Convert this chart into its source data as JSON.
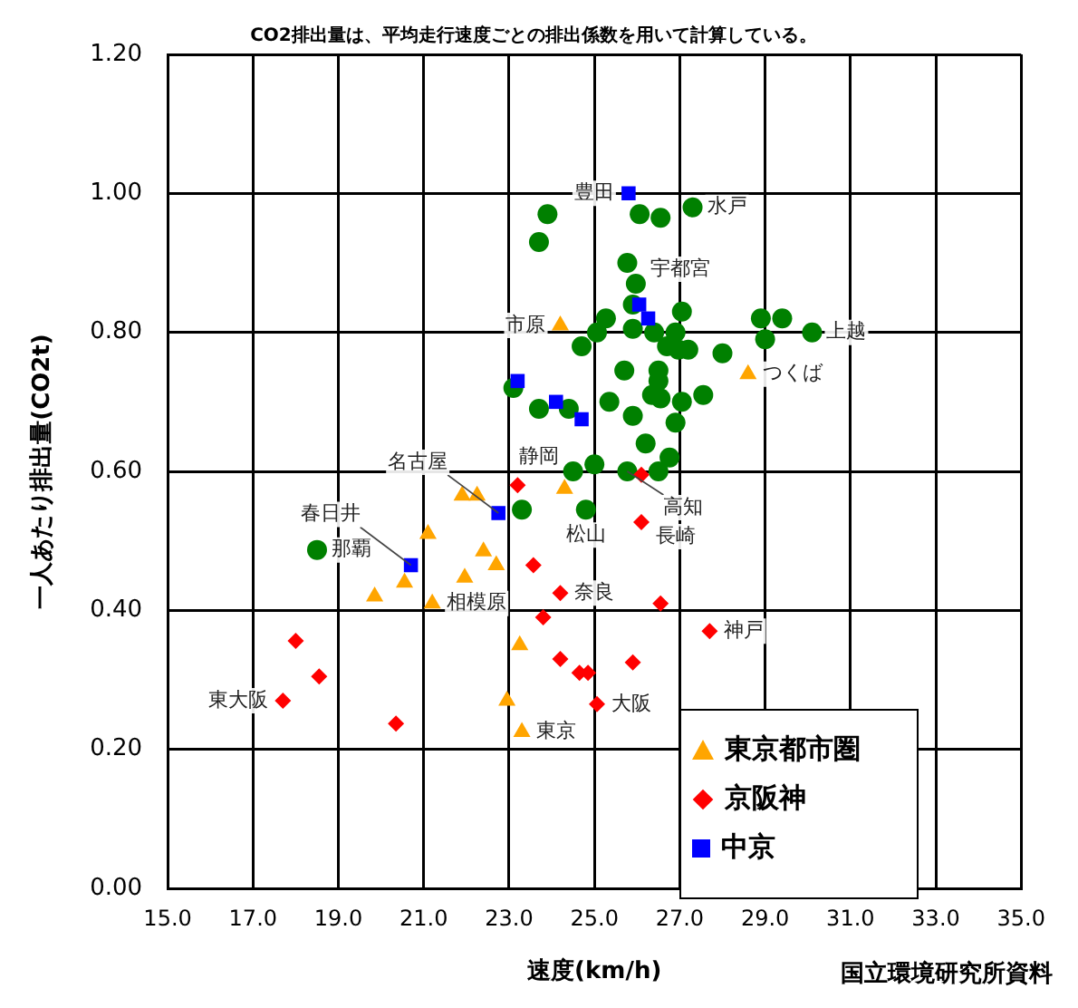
{
  "chart_data": {
    "type": "scatter",
    "subtitle": "CO2排出量は、平均走行速度ごとの排出係数を用いて計算している。",
    "xlabel": "速度(km/h)",
    "ylabel": "一人あたり排出量(CO2t)",
    "xlim": [
      15,
      35
    ],
    "xticks": [
      {
        "value": 15,
        "label": "15.0"
      },
      {
        "value": 17,
        "label": "17.0"
      },
      {
        "value": 19,
        "label": "19.0"
      },
      {
        "value": 21,
        "label": "21.0"
      },
      {
        "value": 23,
        "label": "23.0"
      },
      {
        "value": 25,
        "label": "25.0"
      },
      {
        "value": 27,
        "label": "27.0"
      },
      {
        "value": 29,
        "label": "29.0"
      },
      {
        "value": 31,
        "label": "31.0"
      },
      {
        "value": 33,
        "label": "33.0"
      },
      {
        "value": 35,
        "label": "35.0"
      }
    ],
    "ylim": [
      0,
      1.2
    ],
    "yticks": [
      {
        "value": 0,
        "label": "0.00"
      },
      {
        "value": 0.2,
        "label": "0.20"
      },
      {
        "value": 0.4,
        "label": "0.40"
      },
      {
        "value": 0.6,
        "label": "0.60"
      },
      {
        "value": 0.8,
        "label": "0.80"
      },
      {
        "value": 1.0,
        "label": "1.00"
      },
      {
        "value": 1.2,
        "label": "1.20"
      }
    ],
    "grid": true,
    "legend": "bottom right",
    "series": [
      {
        "color": "#008000",
        "marker": "circle",
        "x": [
          23.9,
          23.7,
          26.06,
          26.55,
          27.3,
          25.77,
          25.97,
          25.9,
          25.27,
          25.06,
          25.9,
          26.4,
          27.05,
          26.9,
          26.7,
          26.97,
          27.2,
          28.0,
          28.9,
          29.4,
          29.0,
          30.1,
          24.7,
          25.7,
          26.5,
          26.5,
          26.35,
          26.55,
          27.05,
          27.55,
          25.35,
          25.9,
          26.9,
          23.1,
          23.7,
          24.4,
          26.2,
          26.76,
          24.5,
          25.0,
          25.77,
          26.5,
          24.8,
          23.3,
          18.5
        ],
        "values": [
          0.97,
          0.93,
          0.97,
          0.965,
          0.98,
          0.9,
          0.87,
          0.84,
          0.82,
          0.8,
          0.805,
          0.8,
          0.83,
          0.8,
          0.78,
          0.775,
          0.775,
          0.77,
          0.82,
          0.82,
          0.79,
          0.8,
          0.78,
          0.745,
          0.745,
          0.73,
          0.71,
          0.705,
          0.7,
          0.71,
          0.7,
          0.68,
          0.67,
          0.72,
          0.69,
          0.69,
          0.64,
          0.62,
          0.6,
          0.61,
          0.6,
          0.6,
          0.545,
          0.545,
          0.487
        ]
      },
      {
        "name": "東京都市圏",
        "color": "#ffa500",
        "marker": "triangle",
        "x": [
          24.2,
          28.6,
          24.3,
          21.1,
          21.9,
          22.25,
          22.4,
          22.7,
          21.96,
          20.55,
          19.85,
          21.2,
          23.25,
          22.95,
          23.3
        ],
        "values": [
          0.81,
          0.74,
          0.575,
          0.51,
          0.565,
          0.565,
          0.485,
          0.465,
          0.447,
          0.44,
          0.42,
          0.41,
          0.35,
          0.27,
          0.225
        ]
      },
      {
        "name": "京阪神",
        "color": "#ff0000",
        "marker": "diamond",
        "x": [
          23.2,
          26.1,
          26.1,
          23.57,
          24.2,
          23.8,
          26.55,
          27.7,
          24.2,
          24.65,
          24.85,
          25.9,
          25.06,
          18.0,
          18.55,
          17.7,
          20.35
        ],
        "values": [
          0.58,
          0.595,
          0.527,
          0.465,
          0.425,
          0.39,
          0.41,
          0.37,
          0.33,
          0.31,
          0.31,
          0.325,
          0.265,
          0.356,
          0.305,
          0.27,
          0.237
        ]
      },
      {
        "name": "中京",
        "color": "#0000ff",
        "marker": "square",
        "x": [
          25.8,
          26.05,
          26.26,
          23.2,
          24.1,
          24.7,
          20.7,
          22.75
        ],
        "values": [
          1.0,
          0.84,
          0.82,
          0.73,
          0.7,
          0.675,
          0.465,
          0.54
        ]
      }
    ],
    "annotations": [
      {
        "text": "豊田",
        "x": 25.8,
        "y": 1.0
      },
      {
        "text": "水戸",
        "x": 27.3,
        "y": 0.98
      },
      {
        "text": "宇都宮",
        "x": 25.97,
        "y": 0.87
      },
      {
        "text": "市原",
        "x": 24.2,
        "y": 0.81
      },
      {
        "text": "上越",
        "x": 30.1,
        "y": 0.8
      },
      {
        "text": "つくば",
        "x": 28.6,
        "y": 0.74
      },
      {
        "text": "静岡",
        "x": 24.5,
        "y": 0.6
      },
      {
        "text": "高知",
        "x": 25.77,
        "y": 0.6
      },
      {
        "text": "長崎",
        "x": 26.1,
        "y": 0.527
      },
      {
        "text": "松山",
        "x": 24.8,
        "y": 0.545
      },
      {
        "text": "名古屋",
        "x": 22.75,
        "y": 0.54
      },
      {
        "text": "那覇",
        "x": 18.5,
        "y": 0.487
      },
      {
        "text": "春日井",
        "x": 20.7,
        "y": 0.465
      },
      {
        "text": "相模原",
        "x": 21.2,
        "y": 0.41
      },
      {
        "text": "奈良",
        "x": 24.2,
        "y": 0.425
      },
      {
        "text": "神戸",
        "x": 27.7,
        "y": 0.37
      },
      {
        "text": "大阪",
        "x": 25.06,
        "y": 0.265
      },
      {
        "text": "東京",
        "x": 23.3,
        "y": 0.225
      },
      {
        "text": "東大阪",
        "x": 17.7,
        "y": 0.27
      },
      "国立環境研究所資料"
    ]
  }
}
